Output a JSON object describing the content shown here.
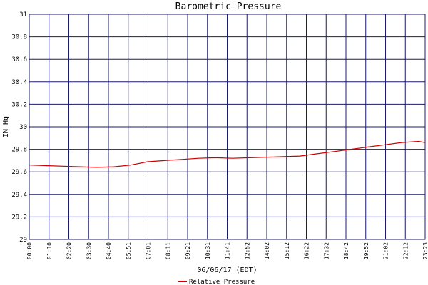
{
  "chart_data": {
    "type": "line",
    "title": "Barometric Pressure",
    "xlabel": "06/06/17 (EDT)",
    "ylabel": "IN Hg",
    "ylim": [
      29,
      31
    ],
    "yticks": [
      "29",
      "29.2",
      "29.4",
      "29.6",
      "29.8",
      "30",
      "30.2",
      "30.4",
      "30.6",
      "30.8",
      "31"
    ],
    "xticks": [
      "00:00",
      "01:10",
      "02:20",
      "03:30",
      "04:40",
      "05:51",
      "07:01",
      "08:11",
      "09:21",
      "10:31",
      "11:41",
      "12:52",
      "14:02",
      "15:12",
      "16:22",
      "17:32",
      "18:42",
      "19:52",
      "21:02",
      "22:12",
      "23:23"
    ],
    "x_range_hours": [
      0,
      23.383
    ],
    "grid": true,
    "legend_position": "bottom-center",
    "series": [
      {
        "name": "Relative Pressure",
        "color": "#cc0000",
        "x": [
          0,
          1,
          2,
          3,
          4,
          5,
          6,
          7,
          8,
          9,
          10,
          11,
          12,
          13,
          14,
          15,
          16,
          17,
          18,
          19,
          20,
          21,
          22,
          23,
          23.38
        ],
        "y": [
          29.66,
          29.655,
          29.65,
          29.645,
          29.64,
          29.645,
          29.66,
          29.69,
          29.7,
          29.71,
          29.72,
          29.725,
          29.72,
          29.725,
          29.73,
          29.735,
          29.74,
          29.76,
          29.78,
          29.8,
          29.82,
          29.84,
          29.86,
          29.87,
          29.86
        ]
      }
    ]
  }
}
